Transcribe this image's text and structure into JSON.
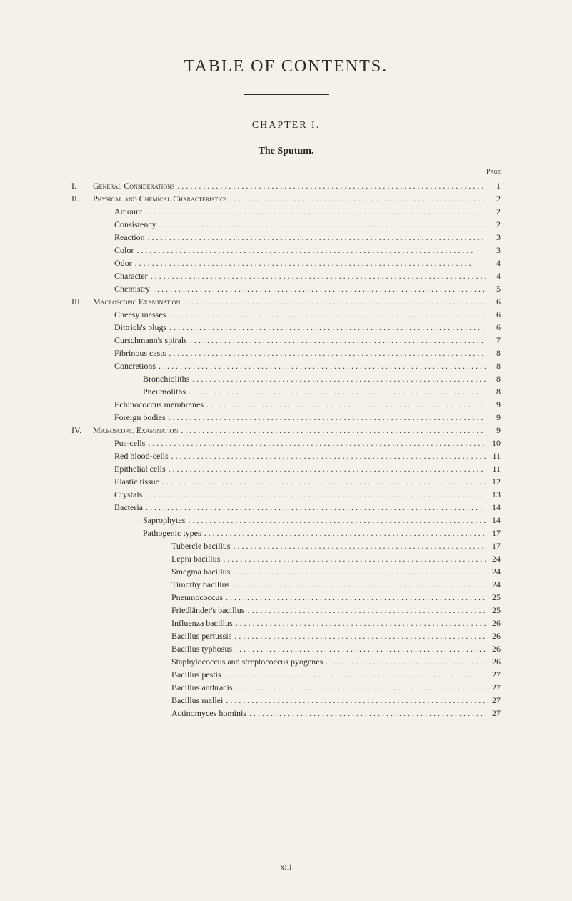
{
  "main_title": "TABLE OF CONTENTS.",
  "chapter_title": "CHAPTER I.",
  "section_title": "The Sputum.",
  "page_label": "Page",
  "page_number": "xiii",
  "entries": [
    {
      "indent": 0,
      "prefix": "I.",
      "label": "General Considerations",
      "page": "1",
      "smallcaps": true
    },
    {
      "indent": 0,
      "prefix": "II.",
      "label": "Physical and Chemical Characteristics",
      "page": "2",
      "smallcaps": true
    },
    {
      "indent": 1,
      "prefix": "",
      "label": "Amount",
      "page": "2"
    },
    {
      "indent": 1,
      "prefix": "",
      "label": "Consistency",
      "page": "2"
    },
    {
      "indent": 1,
      "prefix": "",
      "label": "Reaction",
      "page": "3"
    },
    {
      "indent": 1,
      "prefix": "",
      "label": "Color",
      "page": "3"
    },
    {
      "indent": 1,
      "prefix": "",
      "label": "Odor",
      "page": "4"
    },
    {
      "indent": 1,
      "prefix": "",
      "label": "Character",
      "page": "4"
    },
    {
      "indent": 1,
      "prefix": "",
      "label": "Chemistry",
      "page": "5"
    },
    {
      "indent": 0,
      "prefix": "III.",
      "label": "Macroscopic Examination",
      "page": "6",
      "smallcaps": true
    },
    {
      "indent": 1,
      "prefix": "",
      "label": "Cheesy masses",
      "page": "6"
    },
    {
      "indent": 1,
      "prefix": "",
      "label": "Dittrich's plugs",
      "page": "6"
    },
    {
      "indent": 1,
      "prefix": "",
      "label": "Curschmann's spirals",
      "page": "7"
    },
    {
      "indent": 1,
      "prefix": "",
      "label": "Fibrinous casts",
      "page": "8"
    },
    {
      "indent": 1,
      "prefix": "",
      "label": "Concretions",
      "page": "8"
    },
    {
      "indent": 2,
      "prefix": "",
      "label": "Bronchioliths",
      "page": "8"
    },
    {
      "indent": 2,
      "prefix": "",
      "label": "Pneumoliths",
      "page": "8"
    },
    {
      "indent": 1,
      "prefix": "",
      "label": "Echinococcus membranes",
      "page": "9"
    },
    {
      "indent": 1,
      "prefix": "",
      "label": "Foreign bodies",
      "page": "9"
    },
    {
      "indent": 0,
      "prefix": "IV.",
      "label": "Microscopic Examination",
      "page": "9",
      "smallcaps": true
    },
    {
      "indent": 1,
      "prefix": "",
      "label": "Pus-cells",
      "page": "10"
    },
    {
      "indent": 1,
      "prefix": "",
      "label": "Red blood-cells",
      "page": "11"
    },
    {
      "indent": 1,
      "prefix": "",
      "label": "Epithelial cells",
      "page": "11"
    },
    {
      "indent": 1,
      "prefix": "",
      "label": "Elastic tissue",
      "page": "12"
    },
    {
      "indent": 1,
      "prefix": "",
      "label": "Crystals",
      "page": "13"
    },
    {
      "indent": 1,
      "prefix": "",
      "label": "Bacteria",
      "page": "14"
    },
    {
      "indent": 2,
      "prefix": "",
      "label": "Saprophytes",
      "page": "14"
    },
    {
      "indent": 2,
      "prefix": "",
      "label": "Pathogenic types",
      "page": "17"
    },
    {
      "indent": 3,
      "prefix": "",
      "label": "Tubercle bacillus",
      "page": "17"
    },
    {
      "indent": 3,
      "prefix": "",
      "label": "Lepra bacillus",
      "page": "24"
    },
    {
      "indent": 3,
      "prefix": "",
      "label": "Smegma bacillus",
      "page": "24"
    },
    {
      "indent": 3,
      "prefix": "",
      "label": "Timothy bacillus",
      "page": "24"
    },
    {
      "indent": 3,
      "prefix": "",
      "label": "Pneumococcus",
      "page": "25"
    },
    {
      "indent": 3,
      "prefix": "",
      "label": "Friedländer's bacillus",
      "page": "25"
    },
    {
      "indent": 3,
      "prefix": "",
      "label": "Influenza bacillus",
      "page": "26"
    },
    {
      "indent": 3,
      "prefix": "",
      "label": "Bacillus pertussis",
      "page": "26"
    },
    {
      "indent": 3,
      "prefix": "",
      "label": "Bacillus typhosus",
      "page": "26"
    },
    {
      "indent": 3,
      "prefix": "",
      "label": "Staphylococcus and streptococcus pyogenes",
      "page": "26"
    },
    {
      "indent": 3,
      "prefix": "",
      "label": "Bacillus pestis",
      "page": "27"
    },
    {
      "indent": 3,
      "prefix": "",
      "label": "Bacillus anthracis",
      "page": "27"
    },
    {
      "indent": 3,
      "prefix": "",
      "label": "Bacillus mallei",
      "page": "27"
    },
    {
      "indent": 3,
      "prefix": "",
      "label": "Actinomyces hominis",
      "page": "27"
    }
  ],
  "colors": {
    "background": "#f5f1e8",
    "text": "#2a2a2a"
  },
  "typography": {
    "body_font": "Times New Roman",
    "main_title_size": 24,
    "chapter_title_size": 14,
    "section_title_size": 14,
    "entry_size": 12,
    "page_label_size": 10
  }
}
